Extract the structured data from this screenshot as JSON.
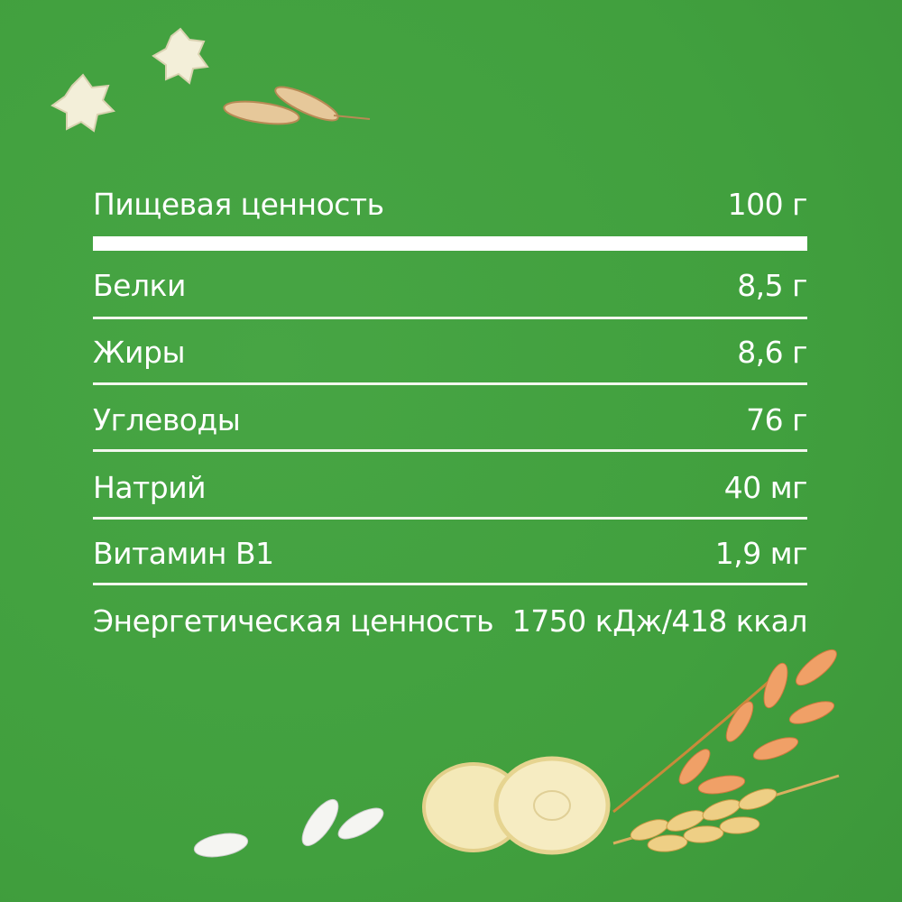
{
  "colors": {
    "background": "#43a040",
    "text": "#ffffff"
  },
  "header": {
    "label": "Пищевая ценность",
    "value": "100 г"
  },
  "rows": [
    {
      "label": "Белки",
      "value": "8,5 г"
    },
    {
      "label": "Жиры",
      "value": "8,6 г"
    },
    {
      "label": "Углеводы",
      "value": "76 г"
    },
    {
      "label": "Натрий",
      "value": "40 мг"
    },
    {
      "label": "Витамин B1",
      "value": "1,9 мг"
    },
    {
      "label": "Энергетическая ценность",
      "value": "1750 кДж/418 ккал"
    }
  ],
  "decorations": [
    "puff-snack",
    "rice-grain",
    "banana-slice",
    "wheat-ear",
    "oat-spikelet",
    "white-bean"
  ]
}
